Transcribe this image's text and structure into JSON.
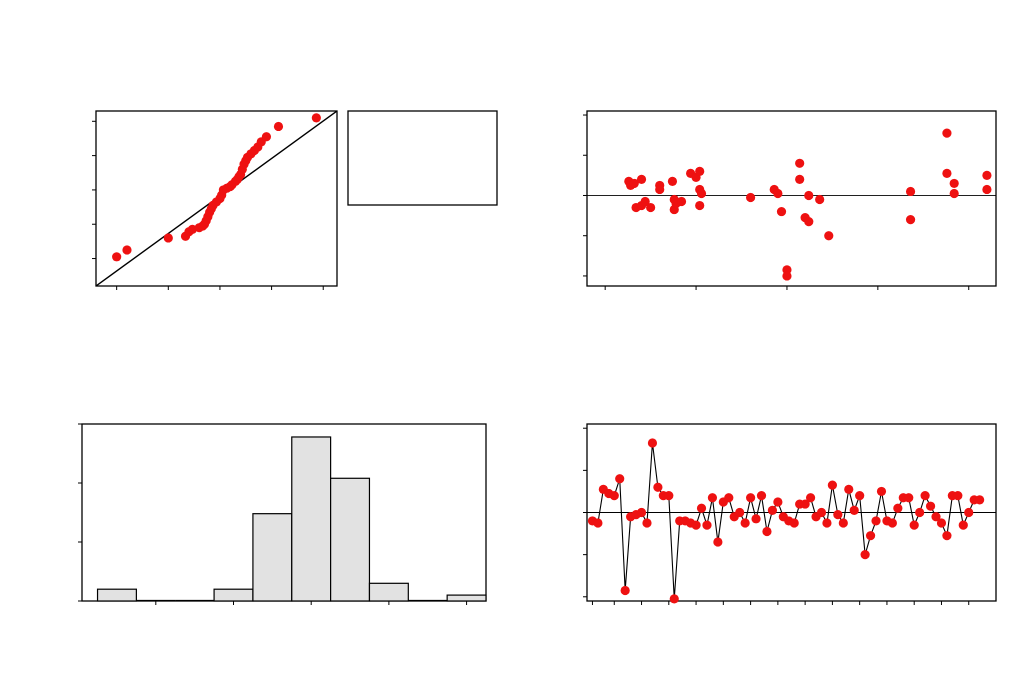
{
  "colors": {
    "point": "#ee1111",
    "bar_fill": "#e2e2e2",
    "axis": "#000000",
    "background": "#ffffff"
  },
  "chart_data": [
    {
      "id": "normal-probability-plot",
      "type": "scatter",
      "title": "",
      "xlabel": "",
      "ylabel": "",
      "xlim": [
        -3.6,
        3.4
      ],
      "ylim": [
        -2.8,
        2.3
      ],
      "xticks": [
        -3,
        -1.5,
        0,
        1.5,
        3
      ],
      "yticks": [
        -2,
        -1,
        0,
        1,
        2
      ],
      "reference_line": {
        "from": [
          -3.6,
          -2.8
        ],
        "to": [
          3.4,
          2.3
        ]
      },
      "points": [
        [
          -3.0,
          -1.95
        ],
        [
          -2.7,
          -1.75
        ],
        [
          -1.5,
          -1.4
        ],
        [
          -1.0,
          -1.35
        ],
        [
          -0.9,
          -1.22
        ],
        [
          -0.8,
          -1.15
        ],
        [
          -0.6,
          -1.1
        ],
        [
          -0.5,
          -1.05
        ],
        [
          -0.45,
          -1.0
        ],
        [
          -0.4,
          -0.9
        ],
        [
          -0.35,
          -0.78
        ],
        [
          -0.3,
          -0.65
        ],
        [
          -0.25,
          -0.55
        ],
        [
          -0.2,
          -0.45
        ],
        [
          -0.1,
          -0.35
        ],
        [
          0.0,
          -0.25
        ],
        [
          0.05,
          -0.15
        ],
        [
          0.1,
          0.0
        ],
        [
          0.2,
          0.05
        ],
        [
          0.3,
          0.1
        ],
        [
          0.35,
          0.15
        ],
        [
          0.45,
          0.25
        ],
        [
          0.5,
          0.3
        ],
        [
          0.55,
          0.38
        ],
        [
          0.6,
          0.45
        ],
        [
          0.65,
          0.6
        ],
        [
          0.7,
          0.75
        ],
        [
          0.75,
          0.85
        ],
        [
          0.8,
          0.95
        ],
        [
          0.9,
          1.05
        ],
        [
          1.0,
          1.15
        ],
        [
          1.1,
          1.25
        ],
        [
          1.2,
          1.4
        ],
        [
          1.35,
          1.55
        ],
        [
          1.7,
          1.85
        ],
        [
          2.8,
          2.1
        ]
      ],
      "legend_box": true
    },
    {
      "id": "residuals-vs-fits",
      "type": "scatter",
      "title": "",
      "xlabel": "",
      "ylabel": "",
      "xlim": [
        -0.1,
        2.15
      ],
      "ylim": [
        -2.25,
        2.1
      ],
      "xticks": [
        0,
        0.5,
        1,
        1.5,
        2
      ],
      "yticks": [
        -2,
        -1,
        0,
        1,
        2
      ],
      "reference_line_y": 0,
      "points": [
        [
          0.13,
          0.35
        ],
        [
          0.14,
          0.25
        ],
        [
          0.16,
          0.3
        ],
        [
          0.17,
          -0.3
        ],
        [
          0.2,
          -0.25
        ],
        [
          0.2,
          0.4
        ],
        [
          0.22,
          -0.15
        ],
        [
          0.25,
          -0.3
        ],
        [
          0.3,
          0.25
        ],
        [
          0.3,
          0.15
        ],
        [
          0.37,
          0.35
        ],
        [
          0.38,
          -0.1
        ],
        [
          0.38,
          -0.35
        ],
        [
          0.39,
          -0.2
        ],
        [
          0.42,
          -0.15
        ],
        [
          0.47,
          0.55
        ],
        [
          0.5,
          0.45
        ],
        [
          0.52,
          0.6
        ],
        [
          0.52,
          0.15
        ],
        [
          0.52,
          -0.25
        ],
        [
          0.53,
          0.05
        ],
        [
          0.8,
          -0.05
        ],
        [
          0.93,
          0.15
        ],
        [
          0.95,
          0.05
        ],
        [
          0.97,
          -0.4
        ],
        [
          1.0,
          -1.85
        ],
        [
          1.0,
          -2.0
        ],
        [
          1.07,
          0.8
        ],
        [
          1.07,
          0.4
        ],
        [
          1.1,
          -0.55
        ],
        [
          1.12,
          -0.65
        ],
        [
          1.12,
          0.0
        ],
        [
          1.18,
          -0.1
        ],
        [
          1.23,
          -1.0
        ],
        [
          1.68,
          0.1
        ],
        [
          1.68,
          -0.6
        ],
        [
          1.88,
          1.55
        ],
        [
          1.88,
          0.55
        ],
        [
          1.92,
          0.3
        ],
        [
          1.92,
          0.05
        ],
        [
          2.1,
          0.5
        ],
        [
          2.1,
          0.15
        ]
      ]
    },
    {
      "id": "histogram",
      "type": "bar",
      "title": "",
      "xlabel": "",
      "ylabel": "",
      "xlim": [
        -3.2,
        2.0
      ],
      "ylim": [
        0,
        15
      ],
      "xticks": [
        -2.25,
        -1.25,
        -0.25,
        0.75,
        1.75
      ],
      "yticks": [
        0,
        5,
        10,
        15
      ],
      "bin_edges": [
        -3.0,
        -2.5,
        -2.0,
        -1.5,
        -1.0,
        -0.5,
        0.0,
        0.5,
        1.0,
        1.5,
        2.0
      ],
      "values": [
        1,
        0,
        0,
        1,
        7.4,
        13.9,
        10.4,
        1.5,
        0,
        0.5
      ]
    },
    {
      "id": "residuals-vs-order",
      "type": "line",
      "title": "",
      "xlabel": "",
      "ylabel": "",
      "xlim": [
        0,
        75
      ],
      "ylim": [
        -2.1,
        2.1
      ],
      "xticks": [
        1,
        5,
        10,
        15,
        20,
        25,
        30,
        35,
        40,
        45,
        50,
        55,
        60,
        65,
        70
      ],
      "yticks": [
        -2,
        -1,
        0,
        1,
        2
      ],
      "reference_line_y": 0,
      "y": [
        -0.2,
        -0.25,
        0.55,
        0.45,
        0.4,
        0.8,
        -1.85,
        -0.1,
        -0.05,
        0.0,
        -0.25,
        1.65,
        0.6,
        0.4,
        0.4,
        -2.05,
        -0.2,
        -0.2,
        -0.25,
        -0.3,
        0.1,
        -0.3,
        0.35,
        -0.7,
        0.25,
        0.35,
        -0.1,
        0.0,
        -0.25,
        0.35,
        -0.15,
        0.4,
        -0.45,
        0.05,
        0.25,
        -0.1,
        -0.2,
        -0.25,
        0.2,
        0.2,
        0.35,
        -0.1,
        0.0,
        -0.25,
        0.65,
        -0.05,
        -0.25,
        0.55,
        0.05,
        0.4,
        -1.0,
        -0.55,
        -0.2,
        0.5,
        -0.2,
        -0.25,
        0.1,
        0.35,
        0.35,
        -0.3,
        0.0,
        0.4,
        0.15,
        -0.1,
        -0.25,
        -0.55,
        0.4,
        0.4,
        -0.3,
        0.0,
        0.3,
        0.3
      ]
    }
  ]
}
